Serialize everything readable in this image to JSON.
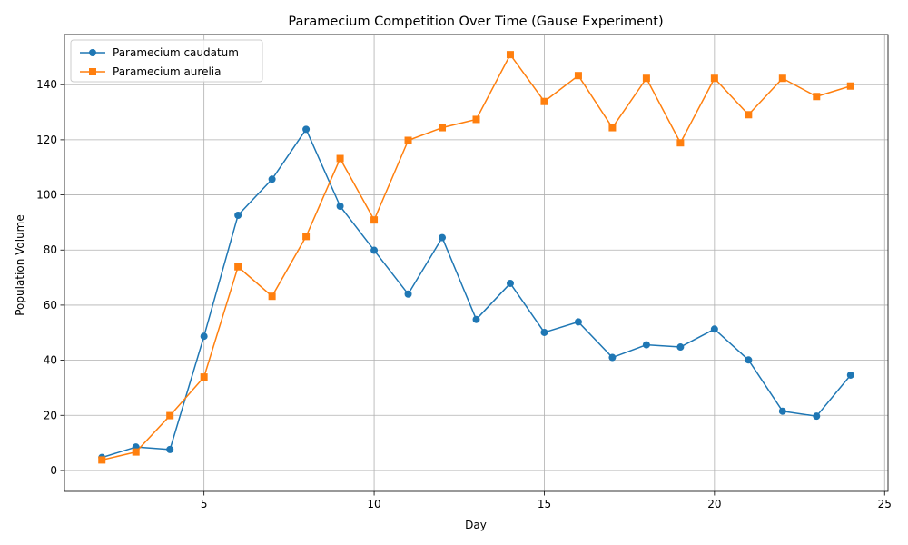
{
  "chart_data": {
    "type": "line",
    "title": "Paramecium Competition Over Time (Gause Experiment)",
    "xlabel": "Day",
    "ylabel": "Population Volume",
    "xlim": [
      0.9,
      25.1
    ],
    "ylim": [
      -7.6,
      158.2
    ],
    "xticks": [
      5,
      10,
      15,
      20,
      25
    ],
    "yticks": [
      0,
      20,
      40,
      60,
      80,
      100,
      120,
      140
    ],
    "grid": true,
    "legend_position": "upper-left",
    "x": [
      2,
      3,
      4,
      5,
      6,
      7,
      8,
      9,
      10,
      11,
      12,
      13,
      14,
      15,
      16,
      17,
      18,
      19,
      20,
      21,
      22,
      23,
      24
    ],
    "series": [
      {
        "name": "Paramecium caudatum",
        "color": "#1f77b4",
        "marker": "circle",
        "values": [
          4.7,
          8.5,
          7.6,
          48.7,
          92.6,
          105.7,
          123.8,
          95.9,
          79.9,
          64.0,
          84.5,
          54.8,
          67.9,
          50.1,
          53.9,
          41.0,
          45.6,
          44.8,
          51.3,
          40.1,
          21.5,
          19.7,
          34.6
        ]
      },
      {
        "name": "Paramecium aurelia",
        "color": "#ff7f0e",
        "marker": "square",
        "values": [
          3.8,
          6.7,
          19.9,
          33.9,
          73.9,
          63.2,
          84.9,
          113.2,
          90.9,
          119.8,
          124.4,
          127.4,
          150.9,
          133.9,
          143.3,
          124.4,
          142.3,
          118.9,
          142.3,
          129.1,
          142.3,
          135.7,
          139.5
        ]
      }
    ]
  }
}
